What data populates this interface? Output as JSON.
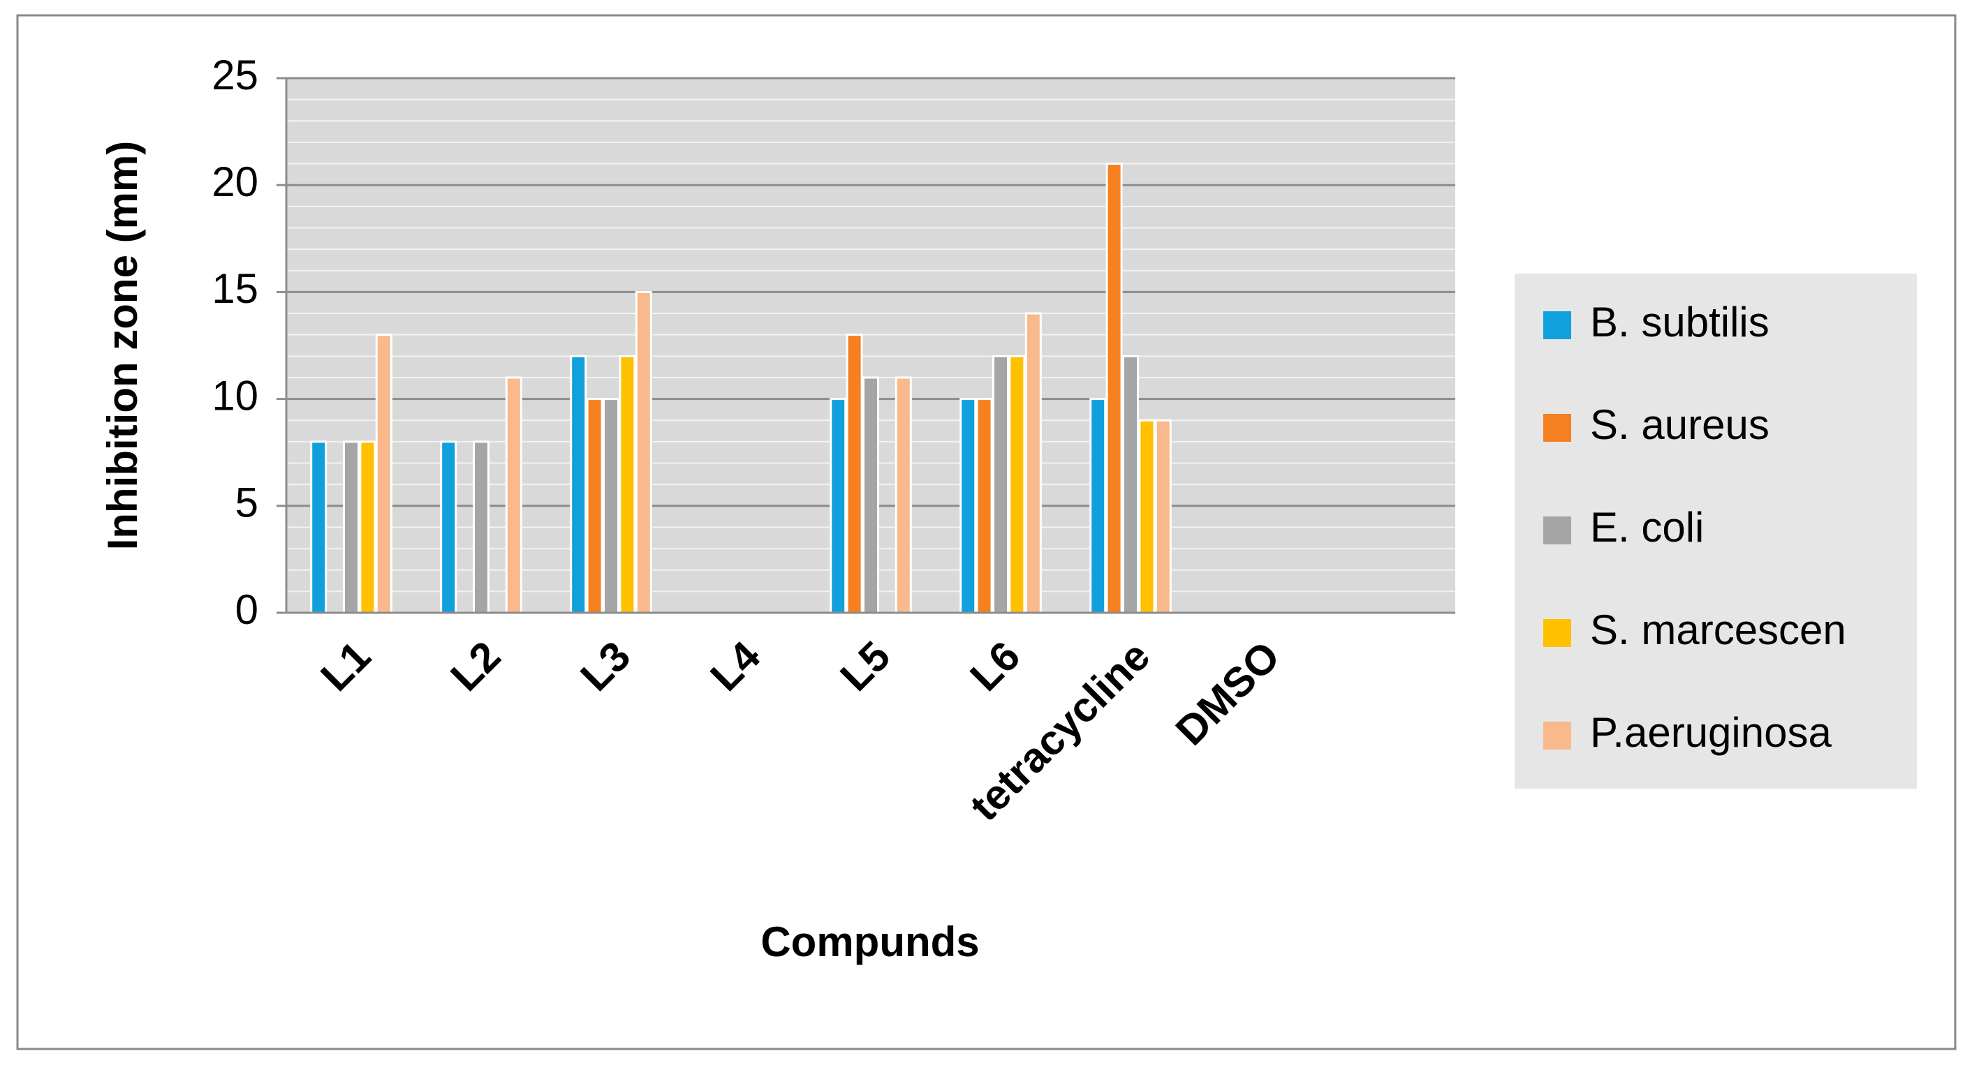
{
  "chart_data": {
    "type": "bar",
    "x_label": "Compunds",
    "y_label": "Inhibition zone (mm)",
    "categories": [
      "L1",
      "L2",
      "L3",
      "L4",
      "L5",
      "L6",
      "tetracycline",
      "DMSO",
      null
    ],
    "series": [
      {
        "name": "B. subtilis",
        "color": "#10a0dc",
        "values": [
          8,
          8,
          12,
          0,
          10,
          10,
          10,
          0,
          null
        ]
      },
      {
        "name": "S. aureus",
        "color": "#f5801f",
        "values": [
          0,
          0,
          10,
          0,
          13,
          10,
          21,
          0,
          null
        ]
      },
      {
        "name": "E. coli",
        "color": "#a5a5a5",
        "values": [
          8,
          8,
          10,
          0,
          11,
          12,
          12,
          0,
          null
        ]
      },
      {
        "name": "S. marcescen",
        "color": "#ffc000",
        "values": [
          8,
          0,
          12,
          0,
          0,
          12,
          9,
          0,
          null
        ]
      },
      {
        "name": "P.aeruginosa",
        "color": "#f9b98c",
        "values": [
          13,
          11,
          15,
          0,
          11,
          14,
          9,
          0,
          null
        ]
      }
    ],
    "ylim": [
      0,
      25
    ],
    "yticks": [
      0,
      5,
      10,
      15,
      20,
      25
    ],
    "minor_yticks": [
      1,
      2,
      3,
      4,
      6,
      7,
      8,
      9,
      11,
      12,
      13,
      14,
      16,
      17,
      18,
      19,
      21,
      22,
      23,
      24
    ],
    "grid": true,
    "legend": "right"
  }
}
